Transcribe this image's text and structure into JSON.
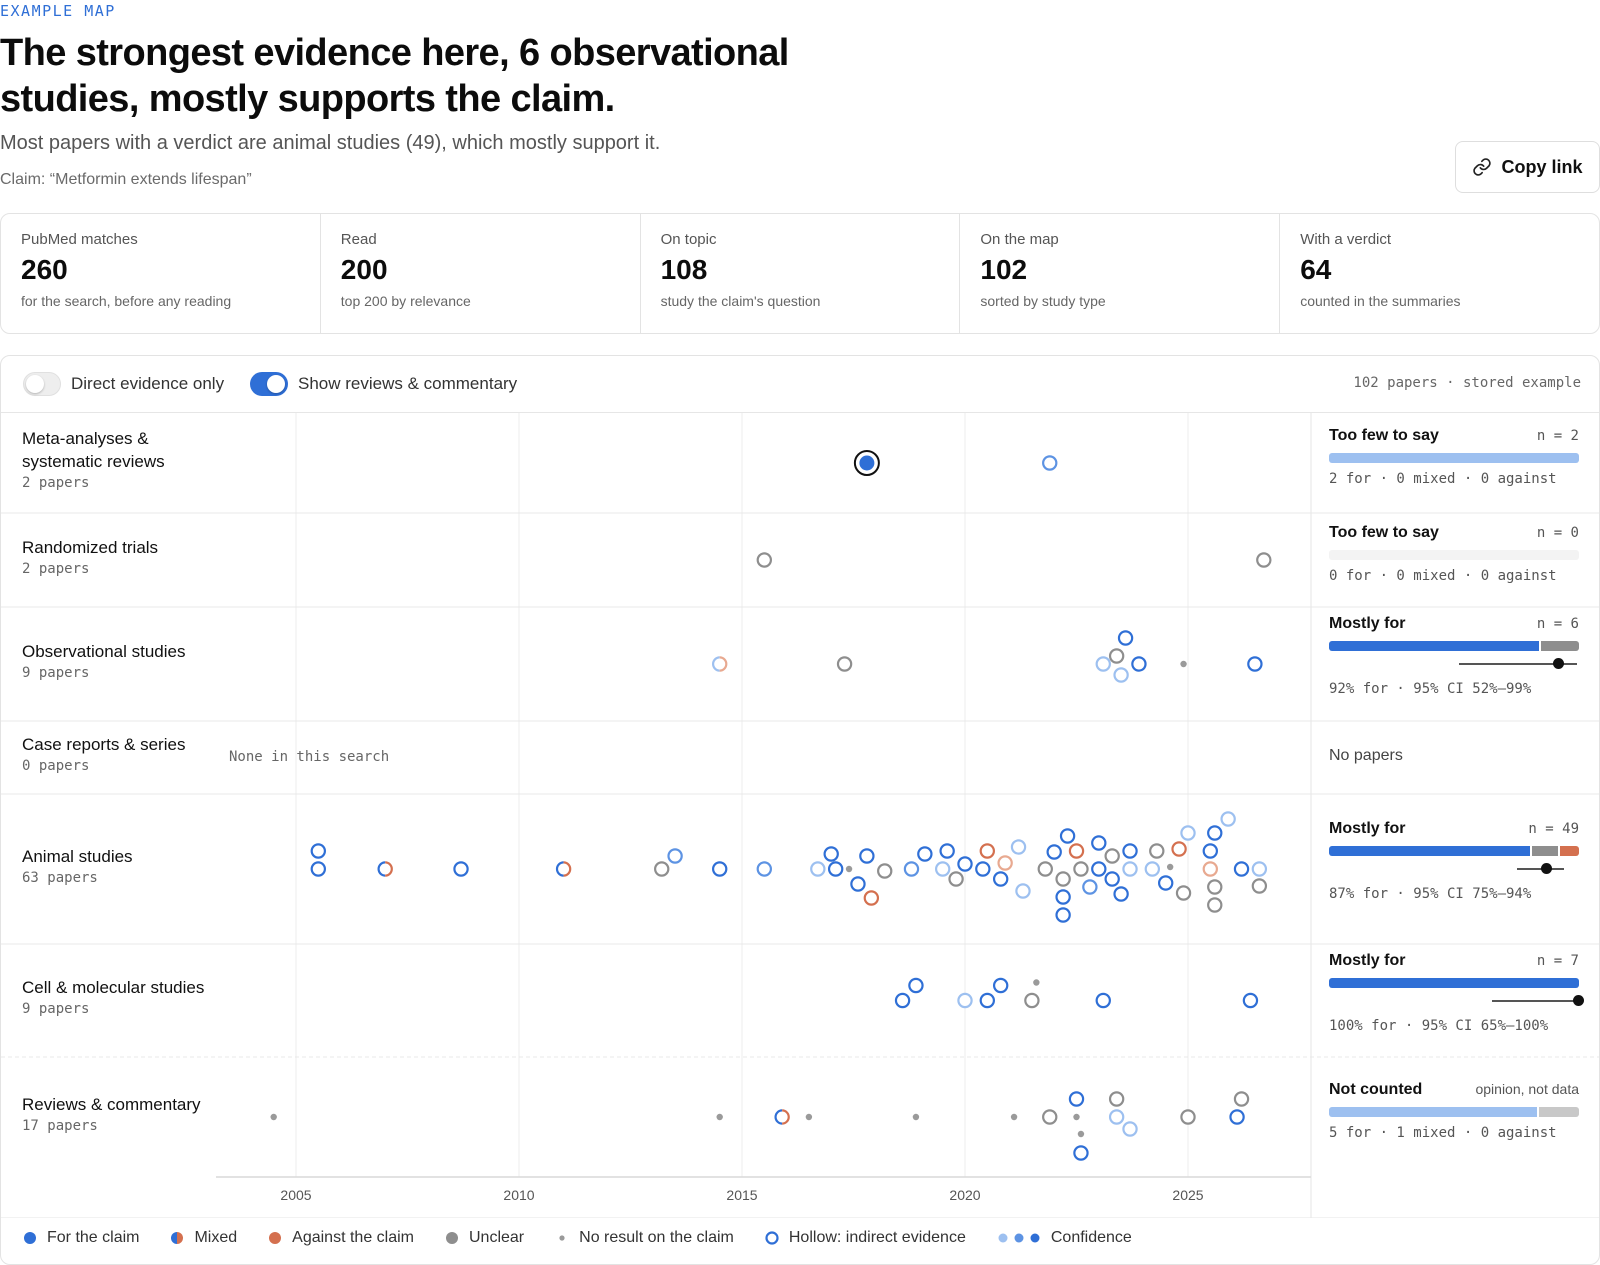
{
  "header": {
    "eyebrow": "EXAMPLE MAP",
    "title": "The strongest evidence here, 6 observational studies, mostly supports the claim.",
    "subtitle": "Most papers with a verdict are animal studies (49), which mostly support it.",
    "claim": "Claim: “Metformin extends lifespan”",
    "copy_label": "Copy link"
  },
  "stats": [
    {
      "label": "PubMed matches",
      "value": "260",
      "sub": "for the search, before any reading"
    },
    {
      "label": "Read",
      "value": "200",
      "sub": "top 200 by relevance"
    },
    {
      "label": "On topic",
      "value": "108",
      "sub": "study the claim's question"
    },
    {
      "label": "On the map",
      "value": "102",
      "sub": "sorted by study type"
    },
    {
      "label": "With a verdict",
      "value": "64",
      "sub": "counted in the summaries"
    }
  ],
  "toolbar": {
    "direct_only": "Direct evidence only",
    "direct_only_on": false,
    "show_reviews": "Show reviews & commentary",
    "show_reviews_on": true,
    "meta": "102 papers · stored example"
  },
  "colors": {
    "for": "#2f6fd6",
    "for_mid": "#5d93e3",
    "for_light": "#9dc0f0",
    "against": "#d4704f",
    "against_light": "#e8a990",
    "unclear": "#8e8e8e",
    "no_result": "#9a9a9a"
  },
  "x_axis": {
    "ticks": [
      "2005",
      "2010",
      "2015",
      "2020",
      "2025"
    ]
  },
  "rows": [
    {
      "name": "Meta-analyses & systematic reviews",
      "count": "2 papers",
      "summary": {
        "title": "Too few to say",
        "n": "n = 2",
        "bar": [
          {
            "frac": 1.0,
            "color": "#9dc0f0"
          }
        ],
        "caption": "2 for · 0 mixed · 0 against"
      },
      "points": [
        {
          "year": 2017.8,
          "dy": 0,
          "kind": "for",
          "hollow": false,
          "conf": "high",
          "highlight": true
        },
        {
          "year": 2021.9,
          "dy": 0,
          "kind": "for",
          "hollow": true,
          "conf": "mid"
        }
      ]
    },
    {
      "name": "Randomized trials",
      "count": "2 papers",
      "summary": {
        "title": "Too few to say",
        "n": "n = 0",
        "bar": [],
        "caption": "0 for · 0 mixed · 0 against"
      },
      "points": [
        {
          "year": 2015.5,
          "dy": 0,
          "kind": "unclear",
          "hollow": true
        },
        {
          "year": 2026.7,
          "dy": 0,
          "kind": "unclear",
          "hollow": true
        }
      ]
    },
    {
      "name": "Observational studies",
      "count": "9 papers",
      "summary": {
        "title": "Mostly for",
        "n": "n = 6",
        "bar": [
          {
            "frac": 0.84,
            "color": "#2f6fd6"
          },
          {
            "frac": 0.16,
            "color": "#8e8e8e"
          }
        ],
        "ci": {
          "lo": 0.52,
          "hi": 0.99,
          "est": 0.92
        },
        "caption": "92% for · 95% CI 52%–99%"
      },
      "points": [
        {
          "year": 2014.5,
          "dy": 0,
          "kind": "mixed",
          "hollow": true,
          "conf": "low"
        },
        {
          "year": 2017.3,
          "dy": 0,
          "kind": "unclear",
          "hollow": true
        },
        {
          "year": 2023.6,
          "dy": -26,
          "kind": "for",
          "hollow": true,
          "conf": "high"
        },
        {
          "year": 2023.4,
          "dy": -8,
          "kind": "unclear",
          "hollow": true
        },
        {
          "year": 2023.1,
          "dy": 0,
          "kind": "for",
          "hollow": true,
          "conf": "low"
        },
        {
          "year": 2023.9,
          "dy": 0,
          "kind": "for",
          "hollow": true,
          "conf": "high"
        },
        {
          "year": 2023.5,
          "dy": 11,
          "kind": "for",
          "hollow": true,
          "conf": "low"
        },
        {
          "year": 2024.9,
          "dy": 0,
          "kind": "none"
        },
        {
          "year": 2026.5,
          "dy": 0,
          "kind": "for",
          "hollow": true,
          "conf": "high"
        }
      ]
    },
    {
      "name": "Case reports & series",
      "count": "0 papers",
      "none_note": "None in this search",
      "summary": {
        "plain": "No papers"
      },
      "points": []
    },
    {
      "name": "Animal studies",
      "count": "63 papers",
      "summary": {
        "title": "Mostly for",
        "n": "n = 49",
        "bar": [
          {
            "frac": 0.805,
            "color": "#2f6fd6"
          },
          {
            "frac": 0.11,
            "color": "#8e8e8e"
          },
          {
            "frac": 0.085,
            "color": "#d4704f"
          }
        ],
        "ci": {
          "lo": 0.75,
          "hi": 0.94,
          "est": 0.87
        },
        "caption": "87% for · 95% CI 75%–94%"
      },
      "points": [
        {
          "year": 2005.5,
          "dy": -18,
          "kind": "for",
          "hollow": true,
          "conf": "high"
        },
        {
          "year": 2005.5,
          "dy": 0,
          "kind": "for",
          "hollow": true,
          "conf": "high"
        },
        {
          "year": 2007.0,
          "dy": 0,
          "kind": "mixed",
          "hollow": true,
          "conf": "high"
        },
        {
          "year": 2008.7,
          "dy": 0,
          "kind": "for",
          "hollow": true,
          "conf": "high"
        },
        {
          "year": 2011.0,
          "dy": 0,
          "kind": "mixed",
          "hollow": true,
          "conf": "high"
        },
        {
          "year": 2013.2,
          "dy": 0,
          "kind": "unclear",
          "hollow": true
        },
        {
          "year": 2013.5,
          "dy": -13,
          "kind": "for",
          "hollow": true,
          "conf": "mid"
        },
        {
          "year": 2014.5,
          "dy": 0,
          "kind": "for",
          "hollow": true,
          "conf": "high"
        },
        {
          "year": 2015.5,
          "dy": 0,
          "kind": "for",
          "hollow": true,
          "conf": "mid"
        },
        {
          "year": 2016.7,
          "dy": 0,
          "kind": "for",
          "hollow": true,
          "conf": "low"
        },
        {
          "year": 2017.1,
          "dy": 0,
          "kind": "for",
          "hollow": true,
          "conf": "high"
        },
        {
          "year": 2017.0,
          "dy": -15,
          "kind": "for",
          "hollow": true,
          "conf": "high"
        },
        {
          "year": 2017.4,
          "dy": 0,
          "kind": "none"
        },
        {
          "year": 2017.8,
          "dy": -13,
          "kind": "for",
          "hollow": true,
          "conf": "high"
        },
        {
          "year": 2017.6,
          "dy": 15,
          "kind": "for",
          "hollow": true,
          "conf": "high"
        },
        {
          "year": 2017.9,
          "dy": 29,
          "kind": "against",
          "hollow": true,
          "conf": "high"
        },
        {
          "year": 2018.2,
          "dy": 2,
          "kind": "unclear",
          "hollow": true
        },
        {
          "year": 2018.8,
          "dy": 0,
          "kind": "for",
          "hollow": true,
          "conf": "mid"
        },
        {
          "year": 2019.1,
          "dy": -15,
          "kind": "for",
          "hollow": true,
          "conf": "high"
        },
        {
          "year": 2019.5,
          "dy": 0,
          "kind": "for",
          "hollow": true,
          "conf": "low"
        },
        {
          "year": 2019.6,
          "dy": -18,
          "kind": "for",
          "hollow": true,
          "conf": "high"
        },
        {
          "year": 2019.8,
          "dy": 10,
          "kind": "unclear",
          "hollow": true
        },
        {
          "year": 2020.0,
          "dy": -5,
          "kind": "for",
          "hollow": true,
          "conf": "high"
        },
        {
          "year": 2020.4,
          "dy": 0,
          "kind": "for",
          "hollow": true,
          "conf": "high"
        },
        {
          "year": 2020.5,
          "dy": -18,
          "kind": "against",
          "hollow": true,
          "conf": "high"
        },
        {
          "year": 2020.8,
          "dy": 10,
          "kind": "for",
          "hollow": true,
          "conf": "high"
        },
        {
          "year": 2020.9,
          "dy": -6,
          "kind": "against",
          "hollow": true,
          "conf": "low"
        },
        {
          "year": 2021.2,
          "dy": -22,
          "kind": "for",
          "hollow": true,
          "conf": "low"
        },
        {
          "year": 2021.3,
          "dy": 22,
          "kind": "for",
          "hollow": true,
          "conf": "low"
        },
        {
          "year": 2021.8,
          "dy": 0,
          "kind": "unclear",
          "hollow": true
        },
        {
          "year": 2022.0,
          "dy": -17,
          "kind": "for",
          "hollow": true,
          "conf": "high"
        },
        {
          "year": 2022.3,
          "dy": -33,
          "kind": "for",
          "hollow": true,
          "conf": "high"
        },
        {
          "year": 2022.2,
          "dy": 10,
          "kind": "unclear",
          "hollow": true
        },
        {
          "year": 2022.2,
          "dy": 28,
          "kind": "for",
          "hollow": true,
          "conf": "high"
        },
        {
          "year": 2022.2,
          "dy": 46,
          "kind": "for",
          "hollow": true,
          "conf": "high"
        },
        {
          "year": 2022.5,
          "dy": -18,
          "kind": "against",
          "hollow": true,
          "conf": "high"
        },
        {
          "year": 2022.6,
          "dy": 0,
          "kind": "unclear",
          "hollow": true
        },
        {
          "year": 2022.8,
          "dy": 18,
          "kind": "for",
          "hollow": true,
          "conf": "mid"
        },
        {
          "year": 2023.0,
          "dy": -26,
          "kind": "for",
          "hollow": true,
          "conf": "high"
        },
        {
          "year": 2023.0,
          "dy": 0,
          "kind": "for",
          "hollow": true,
          "conf": "high"
        },
        {
          "year": 2023.3,
          "dy": -13,
          "kind": "unclear",
          "hollow": true
        },
        {
          "year": 2023.3,
          "dy": 10,
          "kind": "for",
          "hollow": true,
          "conf": "high"
        },
        {
          "year": 2023.5,
          "dy": 25,
          "kind": "for",
          "hollow": true,
          "conf": "high"
        },
        {
          "year": 2023.7,
          "dy": -18,
          "kind": "for",
          "hollow": true,
          "conf": "high"
        },
        {
          "year": 2023.7,
          "dy": 0,
          "kind": "for",
          "hollow": true,
          "conf": "low"
        },
        {
          "year": 2024.2,
          "dy": 0,
          "kind": "for",
          "hollow": true,
          "conf": "low"
        },
        {
          "year": 2024.3,
          "dy": -18,
          "kind": "unclear",
          "hollow": true
        },
        {
          "year": 2024.5,
          "dy": 14,
          "kind": "for",
          "hollow": true,
          "conf": "high"
        },
        {
          "year": 2024.6,
          "dy": -2,
          "kind": "none"
        },
        {
          "year": 2024.8,
          "dy": -20,
          "kind": "against",
          "hollow": true,
          "conf": "high"
        },
        {
          "year": 2024.9,
          "dy": 24,
          "kind": "unclear",
          "hollow": true
        },
        {
          "year": 2025.0,
          "dy": -36,
          "kind": "for",
          "hollow": true,
          "conf": "low"
        },
        {
          "year": 2025.5,
          "dy": -18,
          "kind": "for",
          "hollow": true,
          "conf": "high"
        },
        {
          "year": 2025.5,
          "dy": 0,
          "kind": "against",
          "hollow": true,
          "conf": "low"
        },
        {
          "year": 2025.6,
          "dy": 18,
          "kind": "unclear",
          "hollow": true
        },
        {
          "year": 2025.6,
          "dy": 36,
          "kind": "unclear",
          "hollow": true
        },
        {
          "year": 2025.6,
          "dy": -36,
          "kind": "for",
          "hollow": true,
          "conf": "high"
        },
        {
          "year": 2025.9,
          "dy": -50,
          "kind": "for",
          "hollow": true,
          "conf": "low"
        },
        {
          "year": 2026.2,
          "dy": 0,
          "kind": "for",
          "hollow": true,
          "conf": "high"
        },
        {
          "year": 2026.6,
          "dy": 0,
          "kind": "for",
          "hollow": true,
          "conf": "low"
        },
        {
          "year": 2026.6,
          "dy": 17,
          "kind": "unclear",
          "hollow": true
        }
      ]
    },
    {
      "name": "Cell & molecular studies",
      "count": "9 papers",
      "summary": {
        "title": "Mostly for",
        "n": "n = 7",
        "bar": [
          {
            "frac": 1.0,
            "color": "#2f6fd6"
          }
        ],
        "ci": {
          "lo": 0.65,
          "hi": 1.0,
          "est": 1.0
        },
        "caption": "100% for · 95% CI 65%–100%"
      },
      "points": [
        {
          "year": 2018.6,
          "dy": 0,
          "kind": "for",
          "hollow": true,
          "conf": "high"
        },
        {
          "year": 2018.9,
          "dy": -15,
          "kind": "for",
          "hollow": true,
          "conf": "high"
        },
        {
          "year": 2020.0,
          "dy": 0,
          "kind": "for",
          "hollow": true,
          "conf": "low"
        },
        {
          "year": 2020.5,
          "dy": 0,
          "kind": "for",
          "hollow": true,
          "conf": "high"
        },
        {
          "year": 2020.8,
          "dy": -15,
          "kind": "for",
          "hollow": true,
          "conf": "high"
        },
        {
          "year": 2021.5,
          "dy": 0,
          "kind": "unclear",
          "hollow": true
        },
        {
          "year": 2021.6,
          "dy": -18,
          "kind": "none"
        },
        {
          "year": 2023.1,
          "dy": 0,
          "kind": "for",
          "hollow": true,
          "conf": "high"
        },
        {
          "year": 2026.4,
          "dy": 0,
          "kind": "for",
          "hollow": true,
          "conf": "high"
        }
      ]
    },
    {
      "name": "Reviews & commentary",
      "count": "17 papers",
      "summary": {
        "title": "Not counted",
        "note": "opinion, not data",
        "bar": [
          {
            "frac": 0.83,
            "color": "#9dc0f0"
          },
          {
            "frac": 0.17,
            "color": "#c8c8c8"
          }
        ],
        "caption": "5 for · 1 mixed · 0 against"
      },
      "points": [
        {
          "year": 2004.5,
          "dy": 0,
          "kind": "none"
        },
        {
          "year": 2014.5,
          "dy": 0,
          "kind": "none"
        },
        {
          "year": 2015.9,
          "dy": 0,
          "kind": "mixed",
          "hollow": true,
          "conf": "high"
        },
        {
          "year": 2016.5,
          "dy": 0,
          "kind": "none"
        },
        {
          "year": 2018.9,
          "dy": 0,
          "kind": "none"
        },
        {
          "year": 2021.1,
          "dy": 0,
          "kind": "none"
        },
        {
          "year": 2021.9,
          "dy": 0,
          "kind": "unclear",
          "hollow": true
        },
        {
          "year": 2022.5,
          "dy": -18,
          "kind": "for",
          "hollow": true,
          "conf": "high"
        },
        {
          "year": 2022.5,
          "dy": 0,
          "kind": "none"
        },
        {
          "year": 2022.6,
          "dy": 17,
          "kind": "none"
        },
        {
          "year": 2022.6,
          "dy": 36,
          "kind": "for",
          "hollow": true,
          "conf": "high"
        },
        {
          "year": 2023.4,
          "dy": -18,
          "kind": "unclear",
          "hollow": true
        },
        {
          "year": 2023.4,
          "dy": 0,
          "kind": "for",
          "hollow": true,
          "conf": "low"
        },
        {
          "year": 2023.7,
          "dy": 12,
          "kind": "for",
          "hollow": true,
          "conf": "low"
        },
        {
          "year": 2025.0,
          "dy": 0,
          "kind": "unclear",
          "hollow": true
        },
        {
          "year": 2026.1,
          "dy": 0,
          "kind": "for",
          "hollow": true,
          "conf": "high"
        },
        {
          "year": 2026.2,
          "dy": -18,
          "kind": "unclear",
          "hollow": true
        }
      ]
    }
  ],
  "legend": [
    {
      "label": "For the claim",
      "icon": "dot-for-icon"
    },
    {
      "label": "Mixed",
      "icon": "dot-mixed-icon"
    },
    {
      "label": "Against the claim",
      "icon": "dot-against-icon"
    },
    {
      "label": "Unclear",
      "icon": "dot-unclear-icon"
    },
    {
      "label": "No result on the claim",
      "icon": "small-dot-icon"
    },
    {
      "label": "Hollow: indirect evidence",
      "icon": "hollow-ring-icon"
    },
    {
      "label": "Confidence",
      "icon": "confidence-dots-icon"
    }
  ]
}
